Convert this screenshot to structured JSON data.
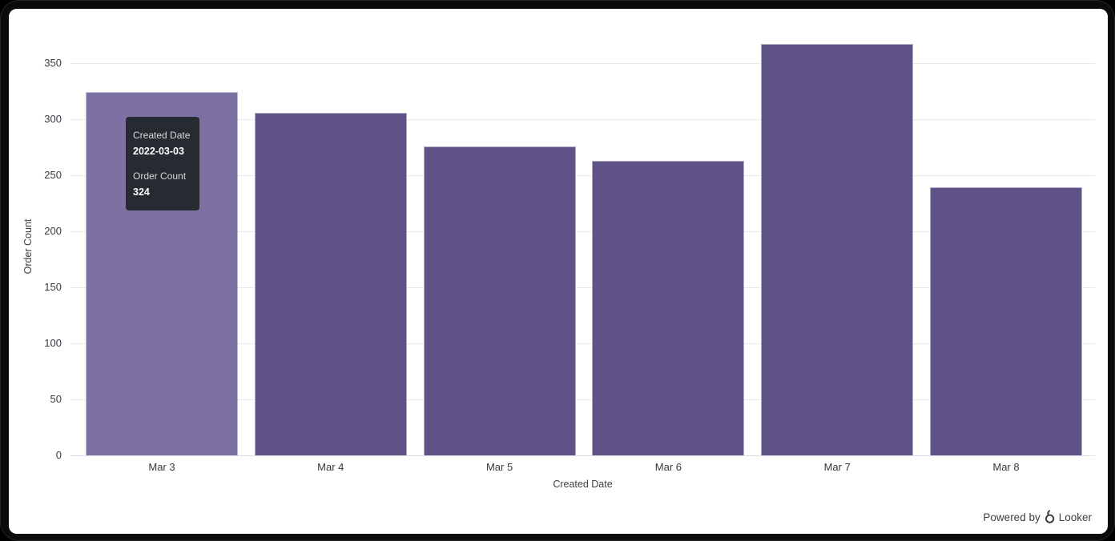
{
  "chart_data": {
    "type": "bar",
    "categories": [
      "Mar 3",
      "Mar 4",
      "Mar 5",
      "Mar 6",
      "Mar 7",
      "Mar 8"
    ],
    "values": [
      324,
      306,
      276,
      263,
      367,
      239
    ],
    "title": "",
    "xlabel": "Created Date",
    "ylabel": "Order Count",
    "ylim": [
      0,
      375
    ],
    "yticks": [
      0,
      50,
      100,
      150,
      200,
      250,
      300,
      350
    ],
    "grid": true,
    "legend": false,
    "hovered_index": 0,
    "bar_color": "#5e5286",
    "bar_hover_color": "#7c71a2",
    "gridline_color": "#e8eaed",
    "axisline_color": "#dcdfe8"
  },
  "tooltip": {
    "background": "#262b31",
    "rows": [
      {
        "label": "Created Date",
        "value": "2022-03-03"
      },
      {
        "label": "Order Count",
        "value": "324"
      }
    ]
  },
  "footer": {
    "powered_by": "Powered by",
    "brand": "Looker"
  }
}
